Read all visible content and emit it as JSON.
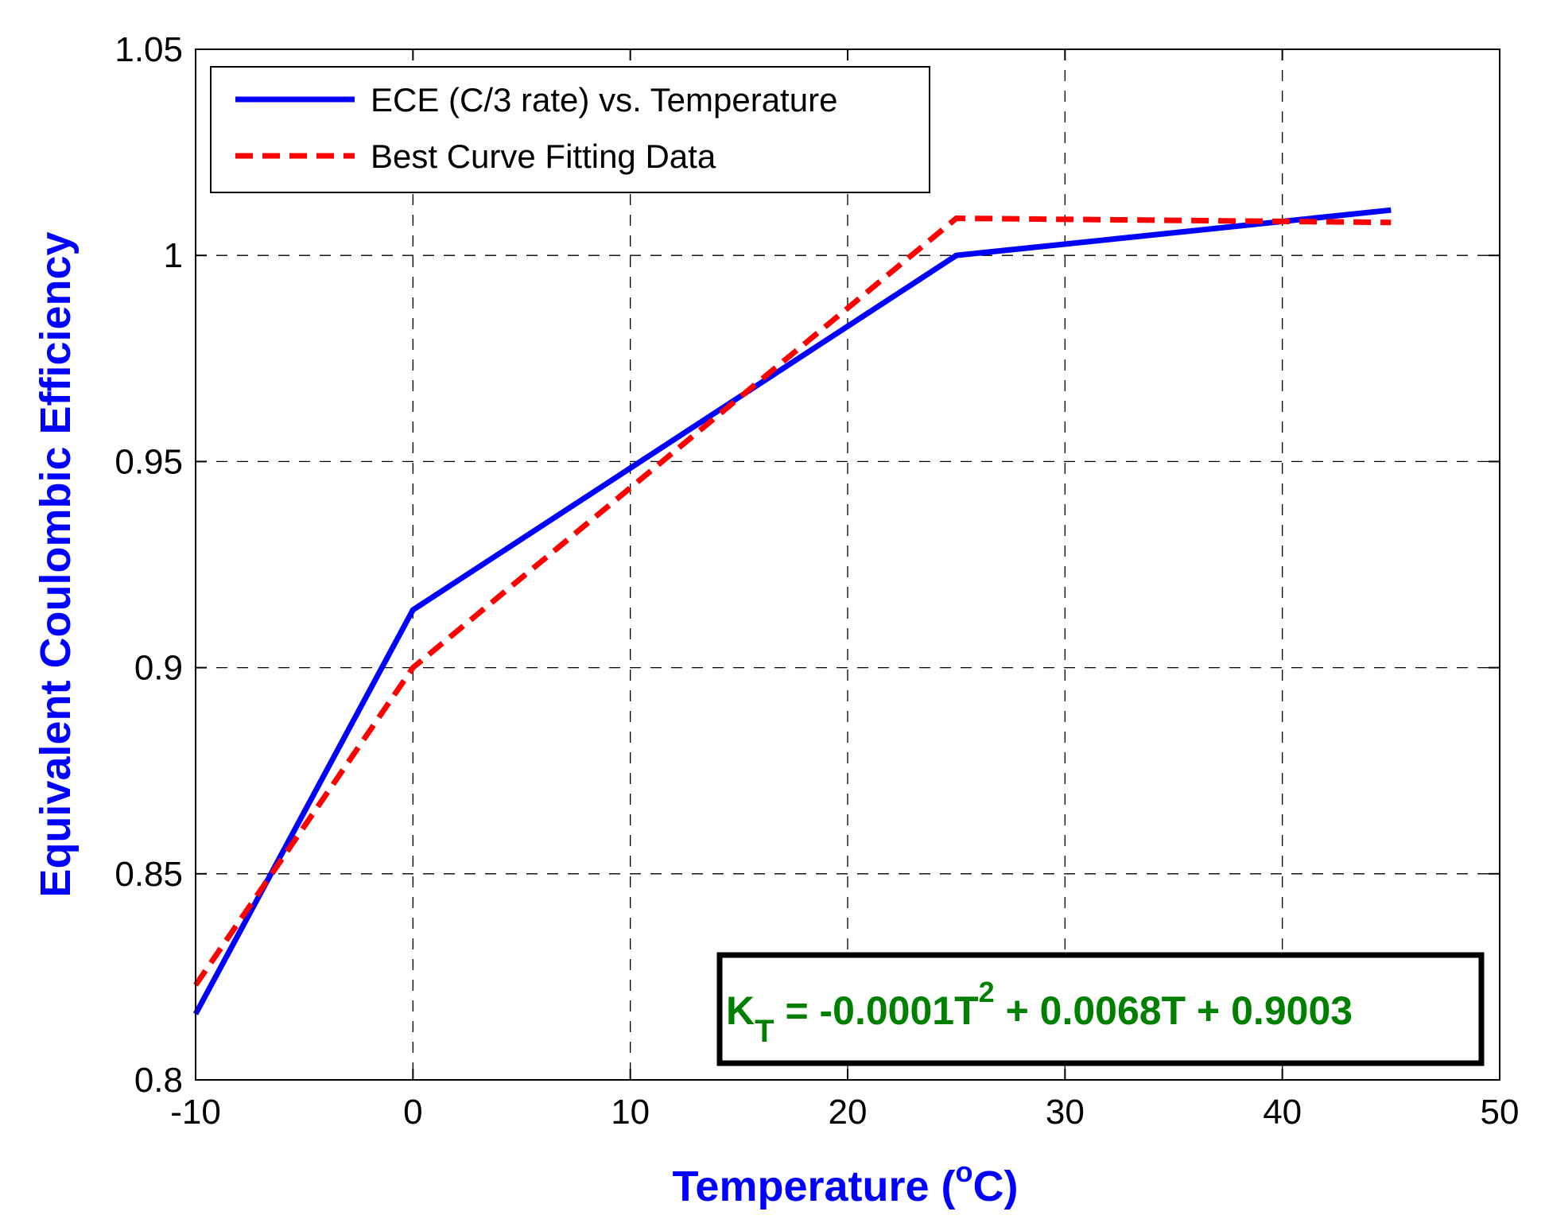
{
  "chart_data": {
    "type": "line",
    "title": "",
    "xlabel": "Temperature (",
    "xlabel_super": "o",
    "xlabel_unit": "C)",
    "ylabel": "Equivalent Coulombic Efficiency",
    "xlim": [
      -10,
      50
    ],
    "ylim": [
      0.8,
      1.05
    ],
    "x_ticks": [
      -10,
      0,
      10,
      20,
      30,
      40,
      50
    ],
    "x_tick_labels": [
      "-10",
      "0",
      "10",
      "20",
      "30",
      "40",
      "50"
    ],
    "y_ticks": [
      0.8,
      0.85,
      0.9,
      0.95,
      1.0,
      1.05
    ],
    "y_tick_labels": [
      "0.8",
      "0.85",
      "0.9",
      "0.95",
      "1",
      "1.05"
    ],
    "grid": true,
    "legend_position": "top-left",
    "series": [
      {
        "name": "ECE (C/3 rate) vs. Temperature",
        "color": "#0000ff",
        "style": "solid",
        "x": [
          -10,
          0,
          25,
          45
        ],
        "y": [
          0.816,
          0.914,
          1.0,
          1.011
        ]
      },
      {
        "name": "Best Curve Fitting Data",
        "color": "#ff0000",
        "style": "dashed",
        "x": [
          -10,
          0,
          25,
          45
        ],
        "y": [
          0.823,
          0.9,
          1.009,
          1.008
        ]
      }
    ],
    "annotation": {
      "k": "K",
      "k_sub": "T",
      "eq_part1": " = -0.0001T",
      "eq_sup": "2",
      "eq_part2": " + 0.0068T + 0.9003",
      "color": "#008000"
    },
    "axis_label_color": "#0000ff"
  }
}
